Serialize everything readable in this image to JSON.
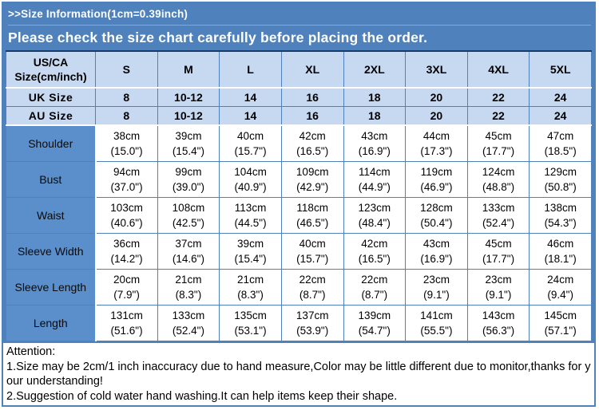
{
  "banner": {
    "title": ">>Size Information(1cm=0.39inch)",
    "subtitle": "Please check the size chart carefully before placing the order."
  },
  "table": {
    "header": {
      "label": "US/CA Size(cm/inch)",
      "sizes": [
        "S",
        "M",
        "L",
        "XL",
        "2XL",
        "3XL",
        "4XL",
        "5XL"
      ]
    },
    "size_rows": [
      {
        "label": "UK Size",
        "values": [
          "8",
          "10-12",
          "14",
          "16",
          "18",
          "20",
          "22",
          "24"
        ]
      },
      {
        "label": "AU Size",
        "values": [
          "8",
          "10-12",
          "14",
          "16",
          "18",
          "20",
          "22",
          "24"
        ]
      }
    ],
    "measurement_rows": [
      {
        "label": "Shoulder",
        "cells": [
          [
            "38cm",
            "(15.0\")"
          ],
          [
            "39cm",
            "(15.4\")"
          ],
          [
            "40cm",
            "(15.7\")"
          ],
          [
            "42cm",
            "(16.5\")"
          ],
          [
            "43cm",
            "(16.9\")"
          ],
          [
            "44cm",
            "(17.3\")"
          ],
          [
            "45cm",
            "(17.7\")"
          ],
          [
            "47cm",
            "(18.5\")"
          ]
        ]
      },
      {
        "label": "Bust",
        "cells": [
          [
            "94cm",
            "(37.0\")"
          ],
          [
            "99cm",
            "(39.0\")"
          ],
          [
            "104cm",
            "(40.9\")"
          ],
          [
            "109cm",
            "(42.9\")"
          ],
          [
            "114cm",
            "(44.9\")"
          ],
          [
            "119cm",
            "(46.9\")"
          ],
          [
            "124cm",
            "(48.8\")"
          ],
          [
            "129cm",
            "(50.8\")"
          ]
        ]
      },
      {
        "label": "Waist",
        "cells": [
          [
            "103cm",
            "(40.6\")"
          ],
          [
            "108cm",
            "(42.5\")"
          ],
          [
            "113cm",
            "(44.5\")"
          ],
          [
            "118cm",
            "(46.5\")"
          ],
          [
            "123cm",
            "(48.4\")"
          ],
          [
            "128cm",
            "(50.4\")"
          ],
          [
            "133cm",
            "(52.4\")"
          ],
          [
            "138cm",
            "(54.3\")"
          ]
        ]
      },
      {
        "label": "Sleeve Width",
        "cells": [
          [
            "36cm",
            "(14.2\")"
          ],
          [
            "37cm",
            "(14.6\")"
          ],
          [
            "39cm",
            "(15.4\")"
          ],
          [
            "40cm",
            "(15.7\")"
          ],
          [
            "42cm",
            "(16.5\")"
          ],
          [
            "43cm",
            "(16.9\")"
          ],
          [
            "45cm",
            "(17.7\")"
          ],
          [
            "46cm",
            "(18.1\")"
          ]
        ]
      },
      {
        "label": "Sleeve Length",
        "cells": [
          [
            "20cm",
            "(7.9\")"
          ],
          [
            "21cm",
            "(8.3\")"
          ],
          [
            "21cm",
            "(8.3\")"
          ],
          [
            "22cm",
            "(8.7\")"
          ],
          [
            "22cm",
            "(8.7\")"
          ],
          [
            "23cm",
            "(9.1\")"
          ],
          [
            "23cm",
            "(9.1\")"
          ],
          [
            "24cm",
            "(9.4\")"
          ]
        ]
      },
      {
        "label": "Length",
        "cells": [
          [
            "131cm",
            "(51.6\")"
          ],
          [
            "133cm",
            "(52.4\")"
          ],
          [
            "135cm",
            "(53.1\")"
          ],
          [
            "137cm",
            "(53.9\")"
          ],
          [
            "139cm",
            "(54.7\")"
          ],
          [
            "141cm",
            "(55.5\")"
          ],
          [
            "143cm",
            "(56.3\")"
          ],
          [
            "145cm",
            "(57.1\")"
          ]
        ]
      }
    ]
  },
  "notes": {
    "title": "Attention:",
    "line1": "1.Size may be 2cm/1 inch inaccuracy due to hand measure,Color may be little different due to monitor,thanks for your understanding!",
    "line2": "2.Suggestion of cold water hand washing.It can help items keep their shape."
  },
  "colors": {
    "banner_blue": "#4f81bd",
    "header_cell_blue": "#c6d9f1",
    "row_label_blue": "#5b8fcc",
    "grid_line_blue": "#4f81bd",
    "table_top_line": "#1f3a5f",
    "banner_text": "#ffffff",
    "body_text": "#000000"
  }
}
